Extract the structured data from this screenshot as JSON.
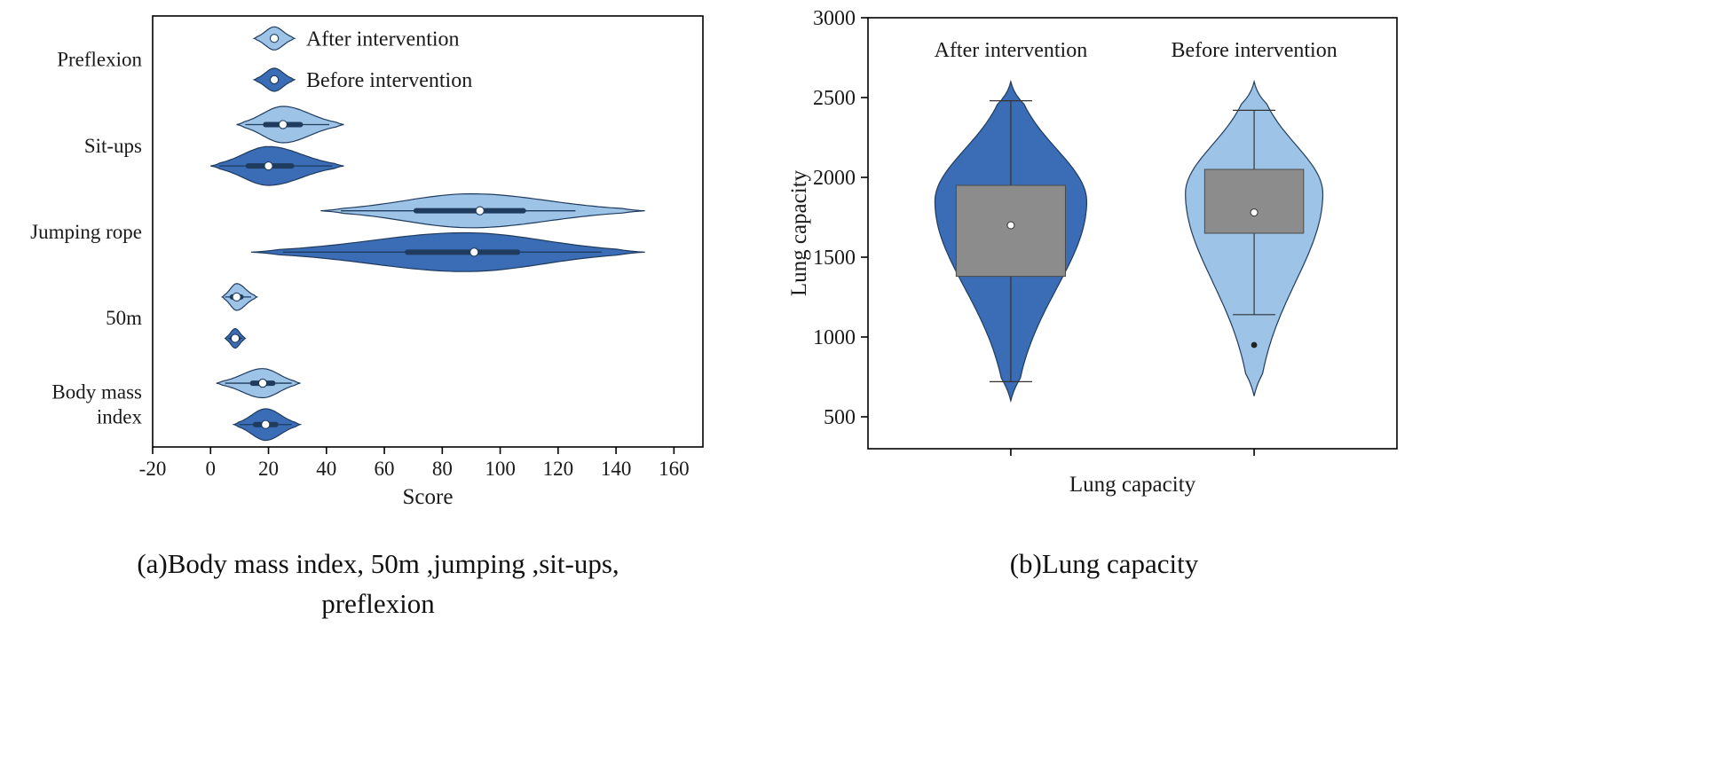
{
  "captions": {
    "a_line1": "(a)Body mass index, 50m ,jumping ,sit-ups,",
    "a_line2": "preflexion",
    "b": "(b)Lung capacity"
  },
  "palette": {
    "light_blue": "#9dc3e6",
    "dark_blue": "#3a6db5",
    "outline": "#1f3b5e",
    "box_gray": "#8c8c8c",
    "box_stroke": "#4a4a4a",
    "axis": "#000000",
    "text": "#1a1a1a"
  },
  "chart_data": [
    {
      "id": "fitness-scores",
      "type": "violin",
      "orientation": "horizontal",
      "xlabel": "Score",
      "xlim": [
        -20,
        170
      ],
      "xticks": [
        -20,
        0,
        20,
        40,
        60,
        80,
        100,
        120,
        140,
        160
      ],
      "categories": [
        [
          "Preflexion"
        ],
        [
          "Sit-ups"
        ],
        [
          "Jumping rope"
        ],
        [
          "50m"
        ],
        [
          "Body mass",
          "index"
        ]
      ],
      "legend": [
        {
          "label": "After intervention",
          "color_key": "light_blue"
        },
        {
          "label": "Before intervention",
          "color_key": "dark_blue"
        }
      ],
      "violins": [
        {
          "series": "After intervention",
          "category": 1,
          "slot": 0,
          "color_key": "light_blue",
          "min": 9,
          "max": 46,
          "peak": 25,
          "median": 25,
          "q1": 19,
          "q3": 31,
          "whisker_low": 12,
          "whisker_high": 41,
          "w": 0.75
        },
        {
          "series": "Before intervention",
          "category": 1,
          "slot": 1,
          "color_key": "dark_blue",
          "min": 0,
          "max": 46,
          "peak": 20,
          "median": 20,
          "q1": 13,
          "q3": 28,
          "whisker_low": 3,
          "whisker_high": 42,
          "w": 0.8
        },
        {
          "series": "After intervention",
          "category": 2,
          "slot": 0,
          "color_key": "light_blue",
          "min": 38,
          "max": 150,
          "peak": 90,
          "median": 93,
          "q1": 71,
          "q3": 108,
          "whisker_low": 45,
          "whisker_high": 126,
          "w": 0.7
        },
        {
          "series": "Before intervention",
          "category": 2,
          "slot": 1,
          "color_key": "dark_blue",
          "min": 14,
          "max": 150,
          "peak": 88,
          "median": 91,
          "q1": 68,
          "q3": 106,
          "whisker_low": 25,
          "whisker_high": 135,
          "w": 0.8
        },
        {
          "series": "After intervention",
          "category": 3,
          "slot": 0,
          "color_key": "light_blue",
          "min": 4,
          "max": 16,
          "peak": 9,
          "median": 9,
          "q1": 7.5,
          "q3": 10.5,
          "whisker_low": 5,
          "whisker_high": 14,
          "w": 0.55
        },
        {
          "series": "Before intervention",
          "category": 3,
          "slot": 1,
          "color_key": "dark_blue",
          "min": 5,
          "max": 12,
          "peak": 8.5,
          "median": 8.5,
          "q1": 7.5,
          "q3": 9.5,
          "whisker_low": 6,
          "whisker_high": 11,
          "w": 0.4
        },
        {
          "series": "After intervention",
          "category": 4,
          "slot": 0,
          "color_key": "light_blue",
          "min": 2,
          "max": 31,
          "peak": 18,
          "median": 18,
          "q1": 14.5,
          "q3": 21.5,
          "whisker_low": 5,
          "whisker_high": 28,
          "w": 0.6
        },
        {
          "series": "Before intervention",
          "category": 4,
          "slot": 1,
          "color_key": "dark_blue",
          "min": 8,
          "max": 31,
          "peak": 19,
          "median": 19,
          "q1": 15.5,
          "q3": 22.5,
          "whisker_low": 10,
          "whisker_high": 28,
          "w": 0.65
        }
      ]
    },
    {
      "id": "lung-capacity",
      "type": "violin",
      "orientation": "vertical",
      "ylabel": "Lung capacity",
      "xlabel": "Lung capacity",
      "ylim": [
        300,
        3000
      ],
      "yticks": [
        500,
        1000,
        1500,
        2000,
        2500,
        3000
      ],
      "violins": [
        {
          "label": "After intervention",
          "color_key": "dark_blue",
          "min": 600,
          "max": 2600,
          "peak": 1850,
          "mean": 1700,
          "box_low": 1380,
          "box_high": 1950,
          "whisker_low": 720,
          "whisker_high": 2480,
          "outliers": [],
          "w": 0.95
        },
        {
          "label": "Before intervention",
          "color_key": "light_blue",
          "min": 630,
          "max": 2600,
          "peak": 1900,
          "mean": 1780,
          "box_low": 1650,
          "box_high": 2050,
          "whisker_low": 1140,
          "whisker_high": 2420,
          "outliers": [
            950
          ],
          "w": 0.86
        }
      ]
    }
  ]
}
